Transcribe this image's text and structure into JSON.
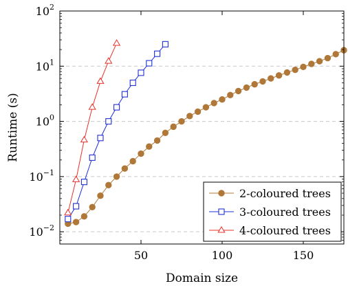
{
  "chart_data": {
    "type": "line",
    "title": "",
    "xlabel": "Domain size",
    "ylabel": "Runtime (s)",
    "xlim": [
      0,
      175
    ],
    "ylim": [
      0.006,
      100
    ],
    "yscale": "log",
    "grid": "horizontal, dashed, at decades",
    "legend_position": "bottom-right",
    "x_ticks": [
      {
        "value": 50,
        "label": "50"
      },
      {
        "value": 100,
        "label": "100"
      },
      {
        "value": 150,
        "label": "150"
      }
    ],
    "y_ticks": [
      {
        "value": 0.01,
        "base": "10",
        "exp": "−2"
      },
      {
        "value": 0.1,
        "base": "10",
        "exp": "−1"
      },
      {
        "value": 1,
        "base": "10",
        "exp": "0"
      },
      {
        "value": 10,
        "base": "10",
        "exp": "1"
      },
      {
        "value": 100,
        "base": "10",
        "exp": "2"
      }
    ],
    "series": [
      {
        "name": "2-coloured trees",
        "color": "#b07838",
        "marker": "circle",
        "x": [
          5,
          10,
          15,
          20,
          25,
          30,
          35,
          40,
          45,
          50,
          55,
          60,
          65,
          70,
          75,
          80,
          85,
          90,
          95,
          100,
          105,
          110,
          115,
          120,
          125,
          130,
          135,
          140,
          145,
          150,
          155,
          160,
          165,
          170,
          175
        ],
        "y": [
          0.014,
          0.015,
          0.019,
          0.028,
          0.045,
          0.07,
          0.1,
          0.14,
          0.19,
          0.26,
          0.35,
          0.45,
          0.62,
          0.8,
          1.0,
          1.25,
          1.5,
          1.8,
          2.15,
          2.5,
          3.0,
          3.55,
          4.1,
          4.7,
          5.3,
          6.0,
          6.8,
          7.7,
          8.6,
          9.7,
          11.0,
          12.3,
          14.0,
          16.5,
          19.5
        ]
      },
      {
        "name": "3-coloured trees",
        "color": "#1f2fd6",
        "marker": "square",
        "x": [
          5,
          10,
          15,
          20,
          25,
          30,
          35,
          40,
          45,
          50,
          55,
          60,
          65
        ],
        "y": [
          0.017,
          0.029,
          0.08,
          0.22,
          0.5,
          1.0,
          1.8,
          3.1,
          5.0,
          7.6,
          11.3,
          16.8,
          25.0
        ]
      },
      {
        "name": "4-coloured trees",
        "color": "#e8302a",
        "marker": "triangle",
        "x": [
          5,
          10,
          15,
          20,
          25,
          30,
          35
        ],
        "y": [
          0.022,
          0.088,
          0.46,
          1.8,
          5.3,
          12.3,
          26.0
        ]
      }
    ]
  }
}
